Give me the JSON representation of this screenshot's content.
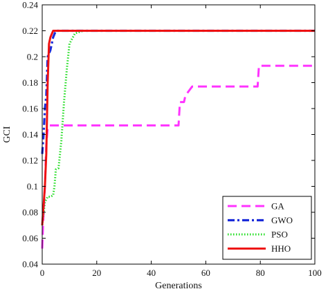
{
  "chart_data": {
    "type": "line",
    "title": "",
    "xlabel": "Generations",
    "ylabel": "GCI",
    "xlim": [
      0,
      100
    ],
    "ylim": [
      0.04,
      0.24
    ],
    "xticks": [
      0,
      20,
      40,
      60,
      80,
      100
    ],
    "yticks": [
      0.04,
      0.06,
      0.08,
      0.1,
      0.12,
      0.14,
      0.16,
      0.18,
      0.2,
      0.22,
      0.24
    ],
    "xtick_labels": [
      "0",
      "20",
      "40",
      "60",
      "80",
      "100"
    ],
    "ytick_labels": [
      "0.04",
      "0.06",
      "0.08",
      "0.1",
      "0.12",
      "0.14",
      "0.16",
      "0.18",
      "0.2",
      "0.22",
      "0.24"
    ],
    "grid": false,
    "legend_position": "bottom-right",
    "series": [
      {
        "name": "GA",
        "color": "#ff33ff",
        "style": "dashed",
        "x": [
          0,
          0.3,
          1,
          1.5,
          2,
          2.5,
          50,
          50.5,
          52,
          52.5,
          55,
          79,
          79.5,
          100
        ],
        "y": [
          0.052,
          0.07,
          0.1,
          0.132,
          0.145,
          0.147,
          0.147,
          0.165,
          0.165,
          0.17,
          0.177,
          0.177,
          0.193,
          0.193
        ]
      },
      {
        "name": "GWO",
        "color": "#1a2bd9",
        "style": "dashdot",
        "x": [
          0,
          0.5,
          1,
          1.5,
          2,
          3,
          3.5,
          4,
          5,
          100
        ],
        "y": [
          0.125,
          0.14,
          0.16,
          0.17,
          0.2,
          0.205,
          0.21,
          0.215,
          0.22,
          0.22
        ]
      },
      {
        "name": "PSO",
        "color": "#22dd22",
        "style": "dotted",
        "x": [
          0,
          1,
          1.5,
          2,
          3,
          4,
          4.5,
          5,
          6,
          7,
          8,
          9,
          10,
          12,
          15,
          100
        ],
        "y": [
          0.07,
          0.088,
          0.09,
          0.092,
          0.092,
          0.093,
          0.1,
          0.113,
          0.114,
          0.135,
          0.165,
          0.19,
          0.21,
          0.218,
          0.22,
          0.22
        ]
      },
      {
        "name": "HHO",
        "color": "#ee1111",
        "style": "solid",
        "x": [
          0,
          1,
          1.5,
          2,
          2.5,
          3,
          4,
          100
        ],
        "y": [
          0.07,
          0.1,
          0.125,
          0.18,
          0.21,
          0.215,
          0.22,
          0.22
        ]
      }
    ]
  }
}
